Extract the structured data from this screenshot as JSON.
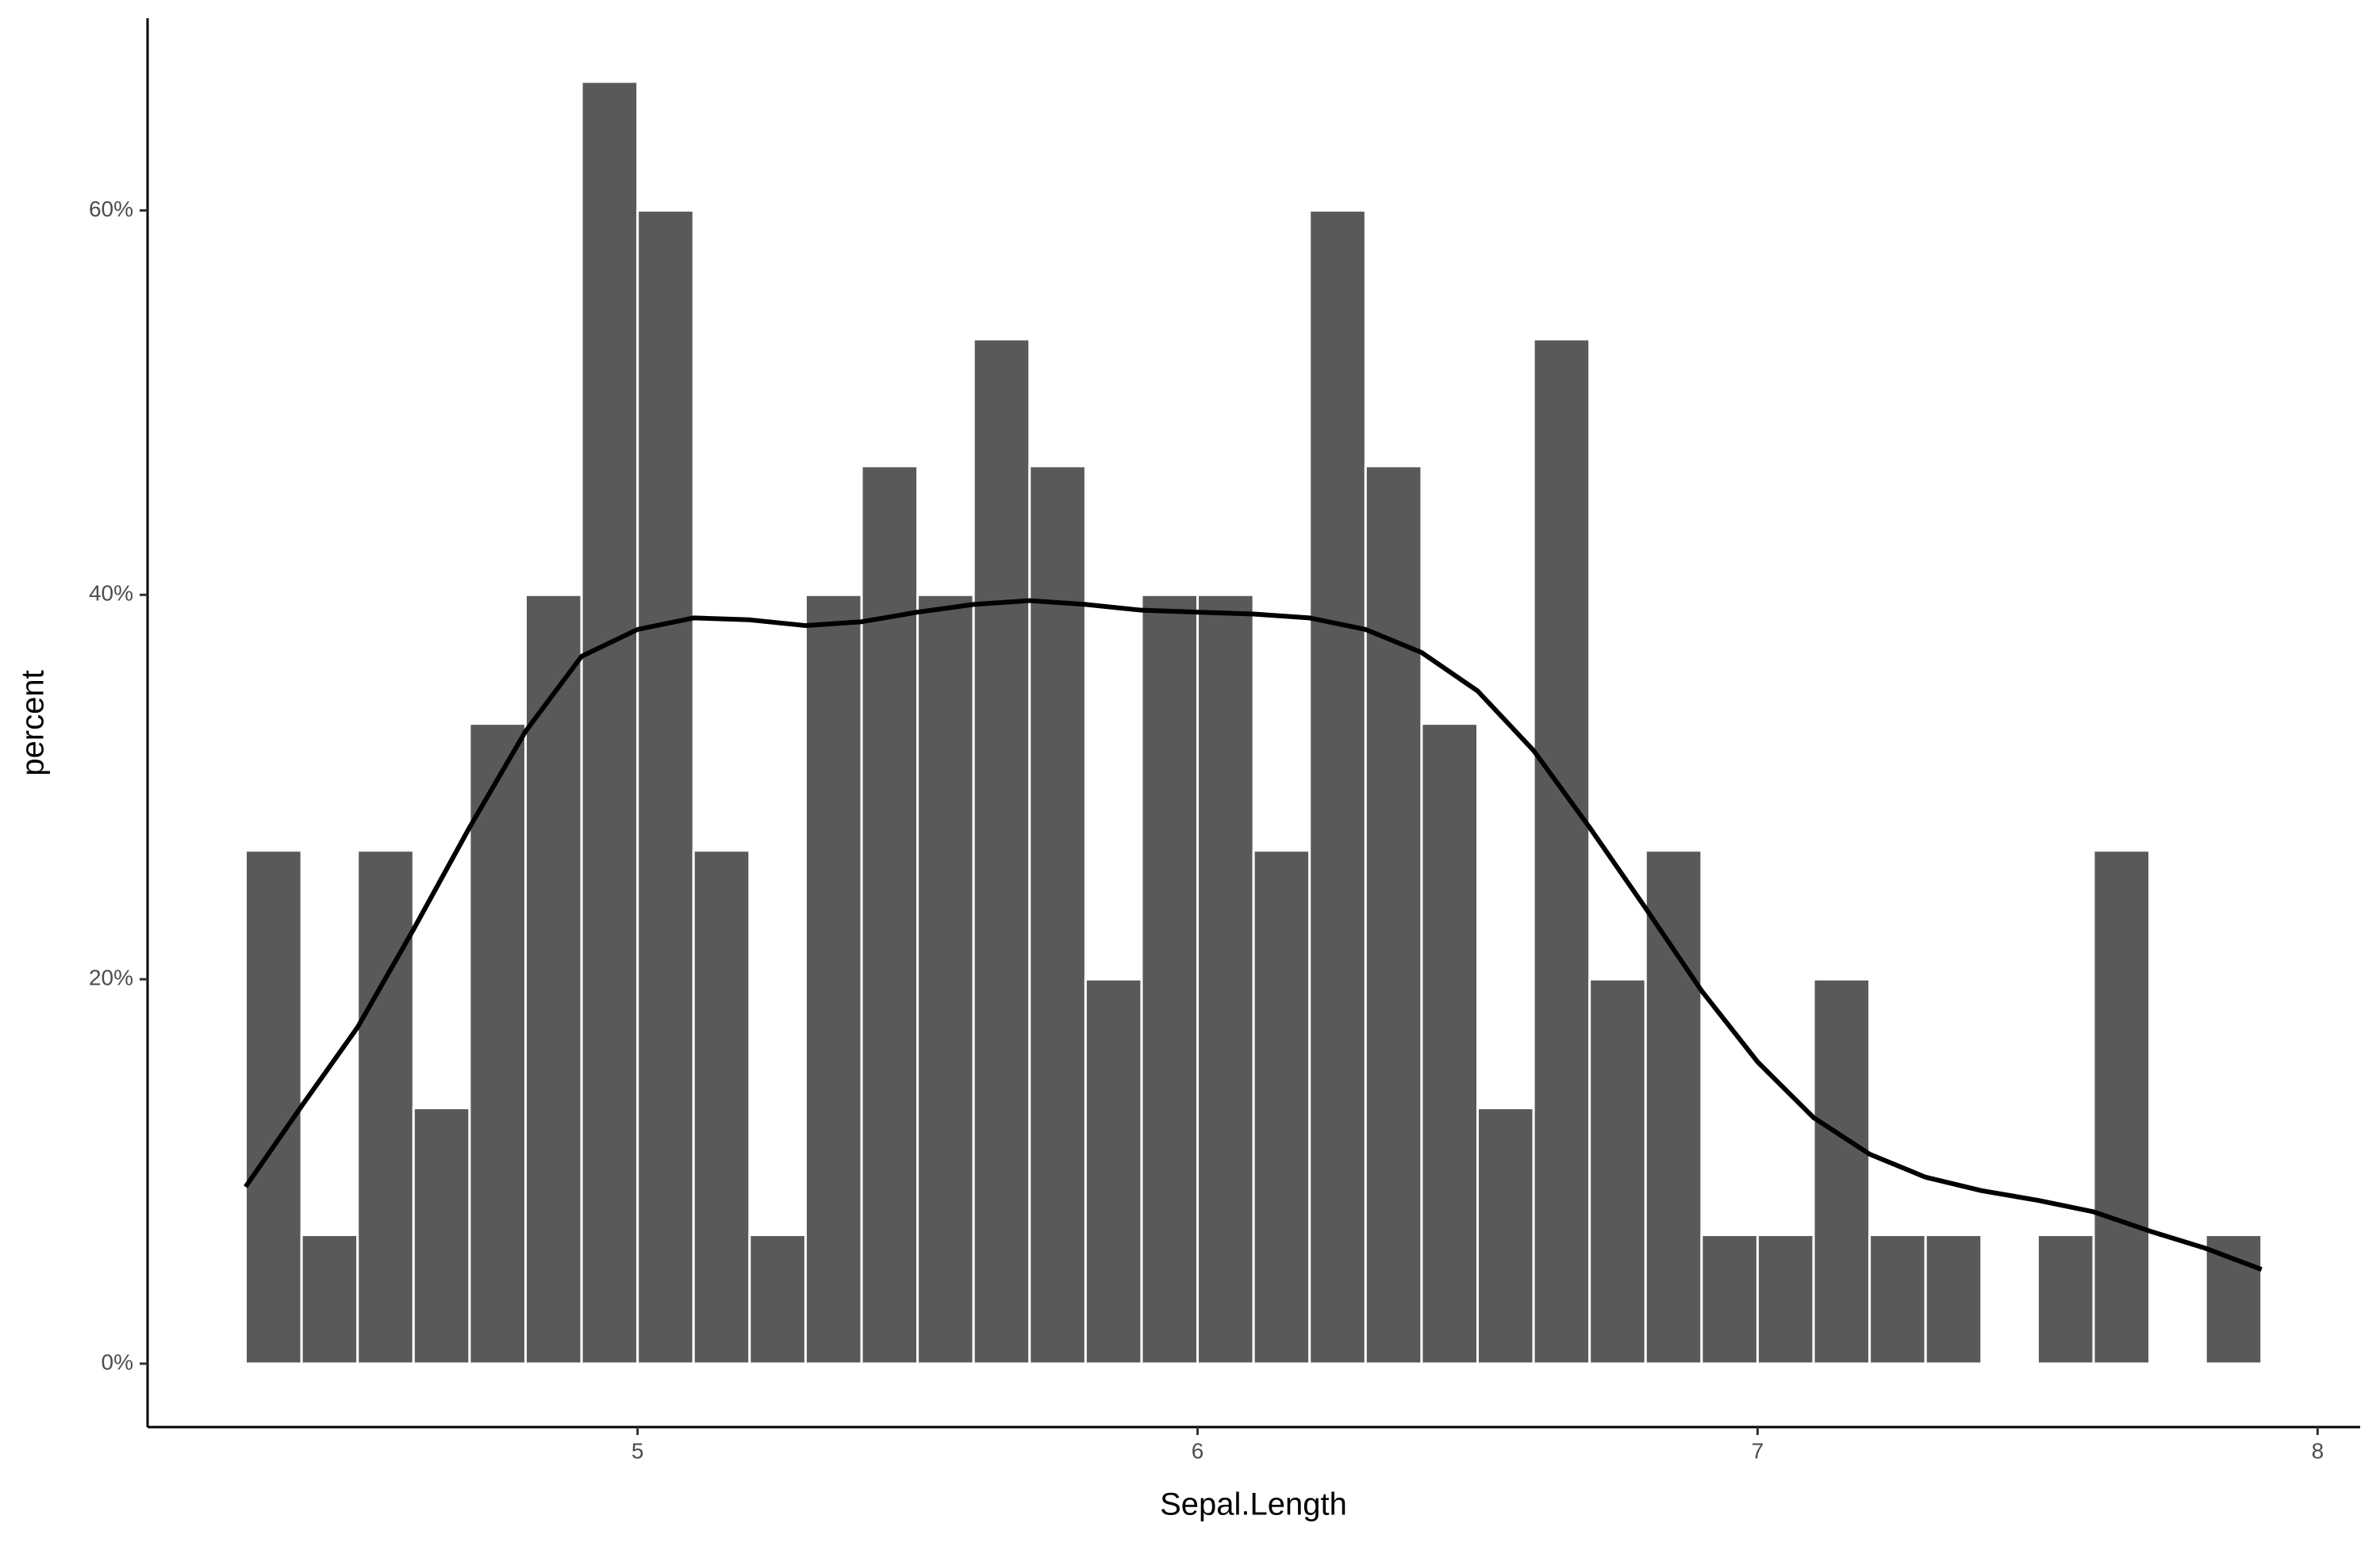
{
  "chart_data": {
    "type": "histogram",
    "xlabel": "Sepal.Length",
    "ylabel": "percent",
    "bins": [
      4.3,
      4.4,
      4.5,
      4.6,
      4.7,
      4.8,
      4.9,
      5.0,
      5.1,
      5.2,
      5.3,
      5.4,
      5.5,
      5.6,
      5.7,
      5.8,
      5.9,
      6.0,
      6.1,
      6.2,
      6.3,
      6.4,
      6.5,
      6.6,
      6.7,
      6.8,
      6.9,
      7.0,
      7.1,
      7.2,
      7.3,
      7.4,
      7.5,
      7.6,
      7.7,
      7.8,
      7.9
    ],
    "values": [
      26.7,
      6.7,
      26.7,
      13.3,
      33.3,
      40,
      66.7,
      60,
      26.7,
      6.7,
      40,
      46.7,
      40,
      53.3,
      46.7,
      20,
      40,
      40,
      26.7,
      60,
      46.7,
      33.3,
      13.3,
      53.3,
      20,
      26.7,
      6.7,
      6.7,
      20,
      6.7,
      6.7,
      0,
      6.7,
      26.7,
      0,
      6.7
    ],
    "color": "#595959",
    "density": {
      "color": "#000000",
      "x": [
        4.3,
        4.4,
        4.5,
        4.6,
        4.7,
        4.8,
        4.9,
        5.0,
        5.1,
        5.2,
        5.3,
        5.4,
        5.5,
        5.6,
        5.7,
        5.8,
        5.9,
        6.0,
        6.1,
        6.2,
        6.3,
        6.4,
        6.5,
        6.6,
        6.7,
        6.8,
        6.9,
        7.0,
        7.1,
        7.2,
        7.3,
        7.4,
        7.5,
        7.6,
        7.7,
        7.8,
        7.9
      ],
      "values": [
        9.2,
        13.4,
        17.5,
        22.6,
        27.9,
        32.9,
        36.8,
        38.2,
        38.8,
        38.7,
        38.4,
        38.6,
        39.1,
        39.5,
        39.7,
        39.5,
        39.2,
        39.1,
        39.0,
        38.8,
        38.2,
        37.0,
        35.0,
        31.9,
        27.9,
        23.7,
        19.4,
        15.7,
        12.8,
        10.9,
        9.7,
        9.0,
        8.5,
        7.9,
        6.9,
        6.0,
        4.9
      ]
    },
    "xlim": [
      4.125,
      8.076
    ],
    "xticks": [
      5,
      6,
      7,
      8
    ],
    "ylim": [
      -3.3,
      70
    ],
    "yticks": [
      {
        "value": 0,
        "label": "0%"
      },
      {
        "value": 20,
        "label": "20%"
      },
      {
        "value": 40,
        "label": "40%"
      },
      {
        "value": 60,
        "label": "60%"
      }
    ],
    "grid": false
  }
}
